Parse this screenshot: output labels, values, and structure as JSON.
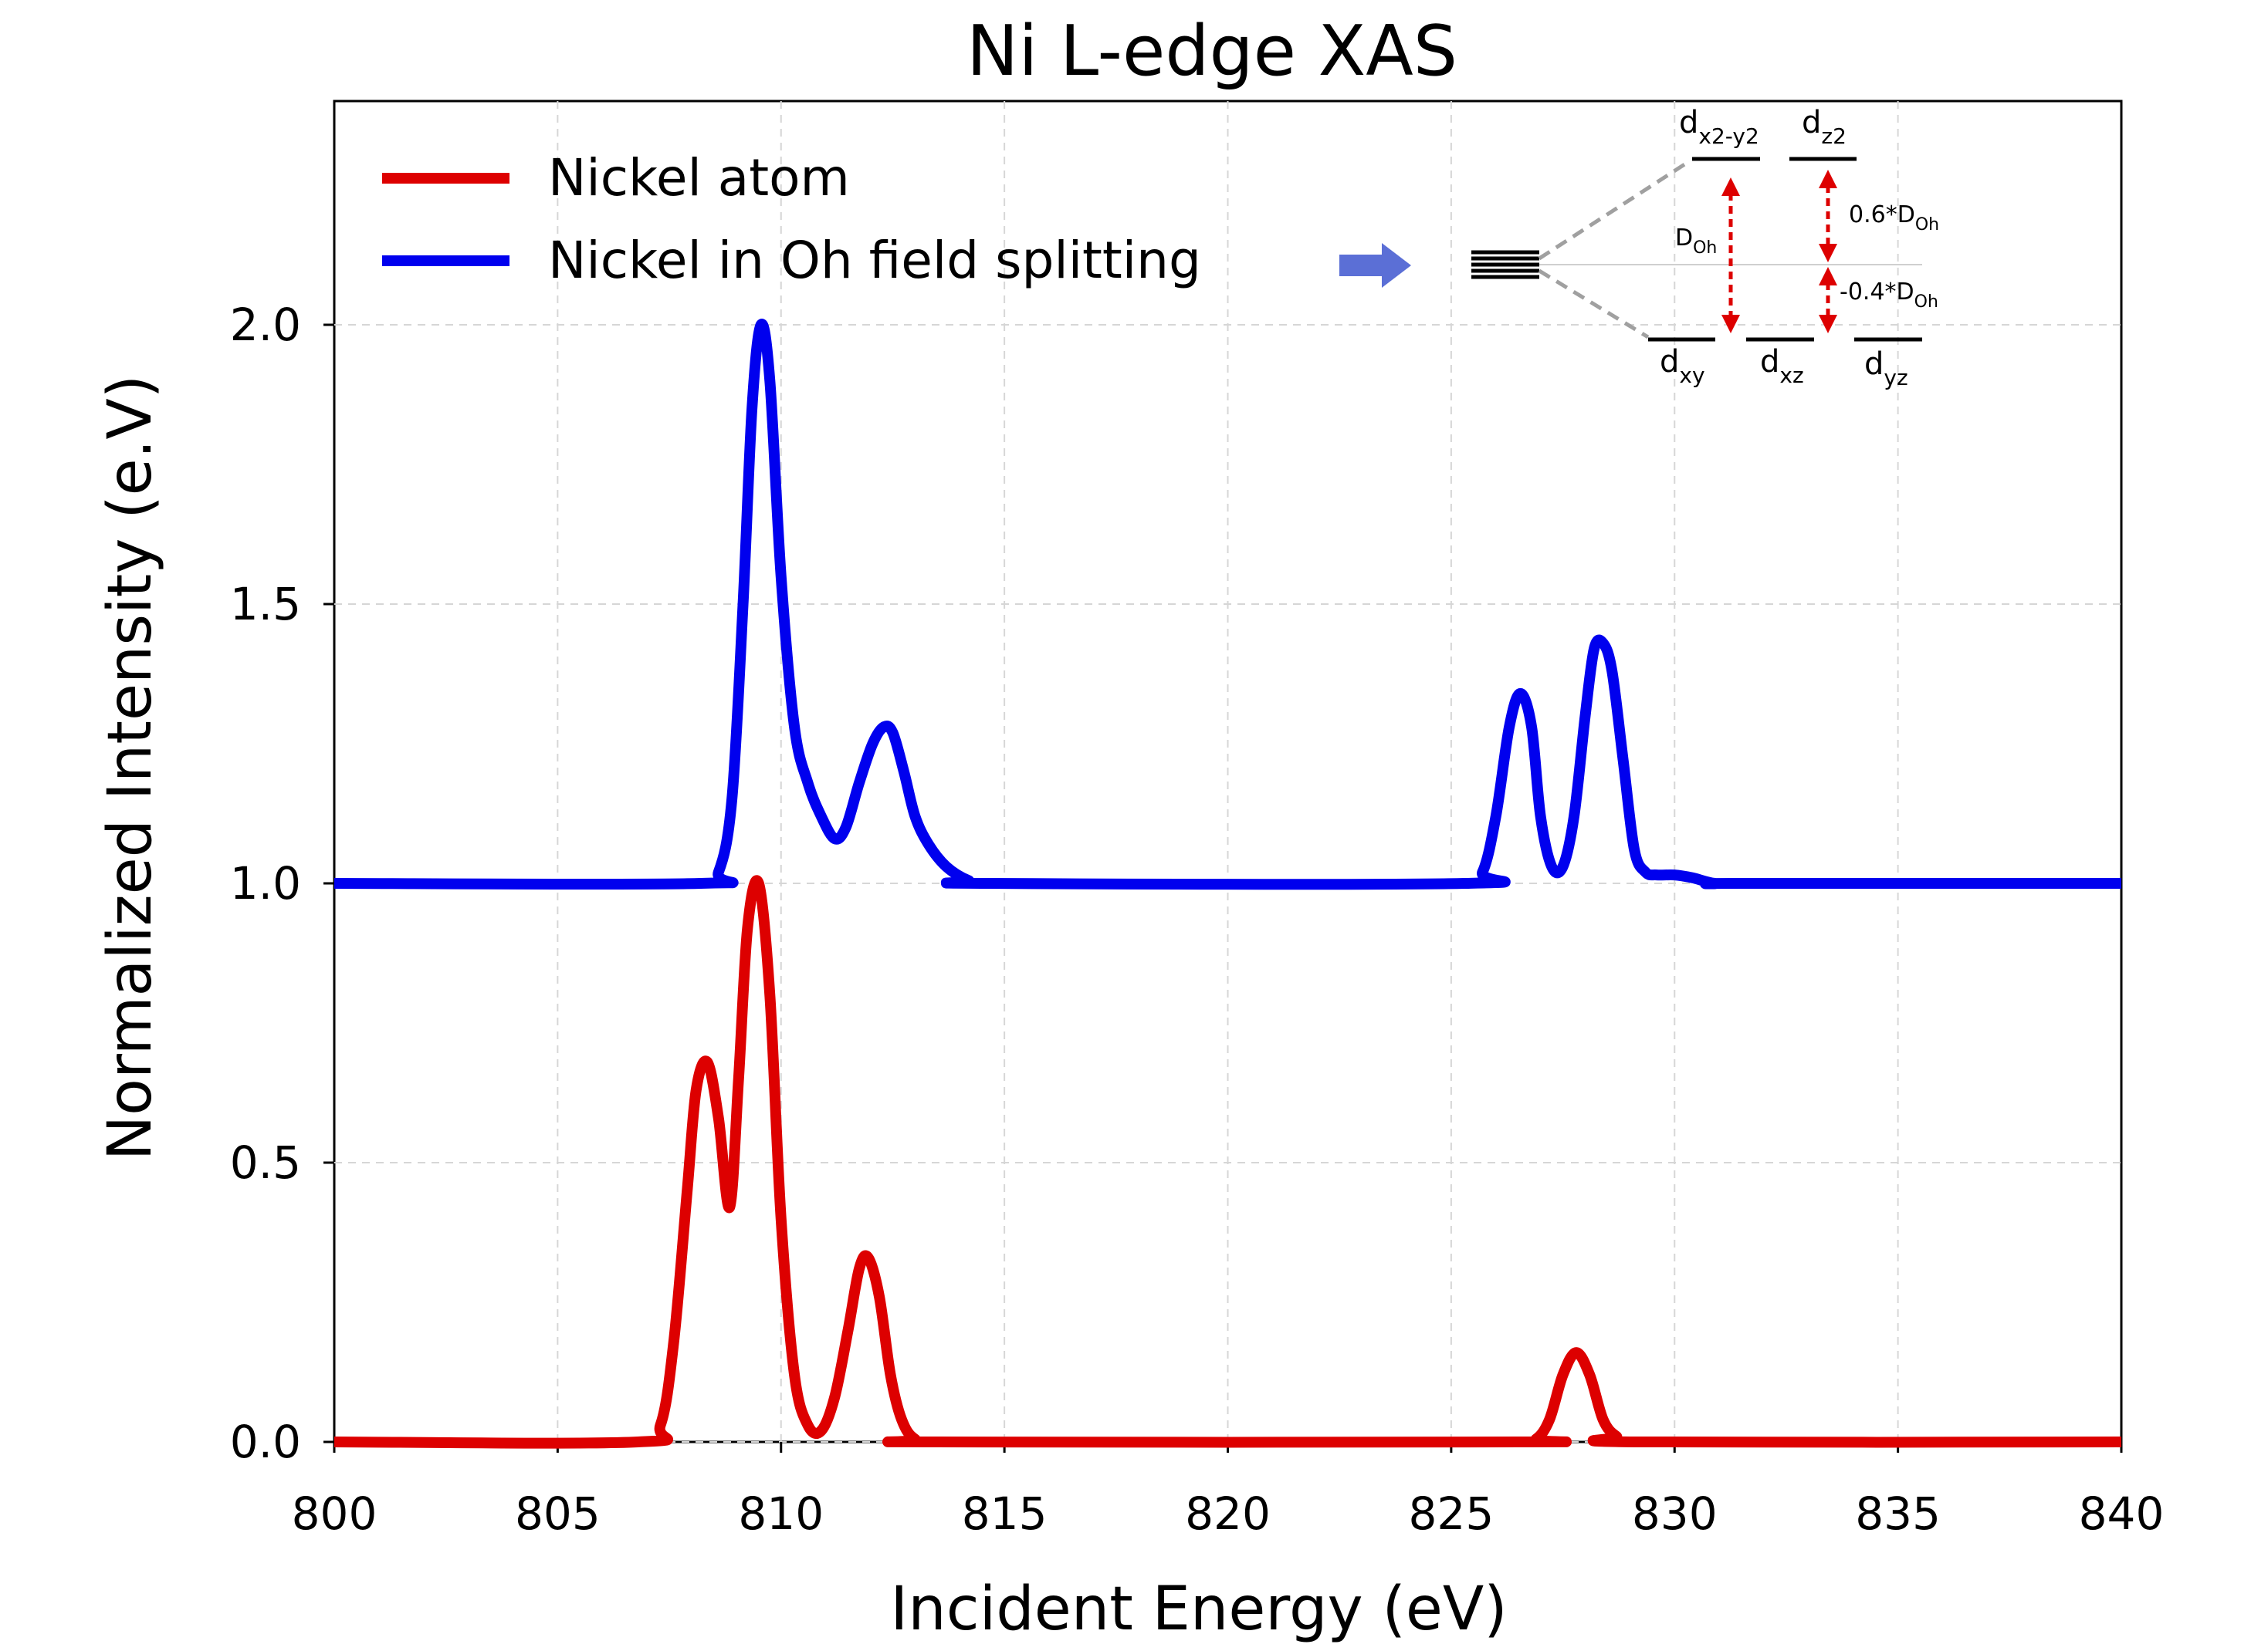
{
  "chart_data": {
    "type": "line",
    "title": "Ni L-edge XAS",
    "xlabel": "Incident Energy (eV)",
    "ylabel": "Normalized Intensity (e.V)",
    "xlim": [
      800,
      840
    ],
    "ylim": [
      0,
      2.4
    ],
    "xticks": [
      "800",
      "805",
      "810",
      "815",
      "820",
      "825",
      "830",
      "835",
      "840"
    ],
    "xtick_values": [
      800,
      805,
      810,
      815,
      820,
      825,
      830,
      835,
      840
    ],
    "yticks": [
      "0.0",
      "0.5",
      "1.0",
      "1.5",
      "2.0"
    ],
    "ytick_values": [
      0.0,
      0.5,
      1.0,
      1.5,
      2.0
    ],
    "grid": true,
    "legend_position": "top-left",
    "series": [
      {
        "name": "Nickel atom",
        "color": "#dd0000",
        "x": [
          800,
          806.8,
          807.3,
          807.6,
          807.9,
          808.1,
          808.35,
          808.6,
          808.85,
          809.05,
          809.25,
          809.5,
          809.75,
          810.0,
          810.3,
          810.6,
          810.9,
          811.2,
          811.5,
          811.75,
          811.95,
          812.2,
          812.45,
          812.7,
          813.0,
          813.5,
          826.5,
          826.9,
          827.2,
          827.5,
          827.8,
          828.1,
          828.4,
          828.7,
          829.1,
          840
        ],
        "y": [
          0,
          0,
          0.03,
          0.18,
          0.45,
          0.63,
          0.68,
          0.58,
          0.42,
          0.65,
          0.92,
          1.0,
          0.8,
          0.4,
          0.12,
          0.03,
          0.02,
          0.08,
          0.2,
          0.31,
          0.33,
          0.26,
          0.12,
          0.04,
          0.005,
          0,
          0,
          0.005,
          0.04,
          0.12,
          0.16,
          0.12,
          0.04,
          0.01,
          0,
          0
        ]
      },
      {
        "name": "Nickel in Oh field splitting",
        "color": "#0000ee",
        "x": [
          800,
          808.2,
          808.6,
          808.9,
          809.15,
          809.35,
          809.55,
          809.75,
          810.0,
          810.3,
          810.6,
          810.9,
          811.2,
          811.45,
          811.75,
          812.05,
          812.3,
          812.5,
          812.75,
          813.0,
          813.3,
          813.7,
          814.2,
          814.6,
          825.3,
          825.7,
          826.0,
          826.3,
          826.55,
          826.8,
          827.0,
          827.25,
          827.5,
          827.75,
          828.0,
          828.2,
          828.4,
          828.6,
          828.85,
          829.1,
          829.35,
          829.6,
          830.0,
          830.4,
          830.9,
          831.5,
          840
        ],
        "y": [
          1.0,
          1.0,
          1.02,
          1.15,
          1.5,
          1.85,
          2.0,
          1.9,
          1.55,
          1.28,
          1.18,
          1.12,
          1.08,
          1.1,
          1.18,
          1.25,
          1.28,
          1.27,
          1.2,
          1.12,
          1.07,
          1.03,
          1.005,
          1.0,
          1.0,
          1.02,
          1.12,
          1.28,
          1.34,
          1.28,
          1.12,
          1.03,
          1.03,
          1.12,
          1.3,
          1.42,
          1.43,
          1.38,
          1.22,
          1.06,
          1.02,
          1.015,
          1.015,
          1.01,
          1.0,
          1.0,
          1.0
        ]
      }
    ]
  },
  "inset": {
    "levels_top": [
      "d",
      "d"
    ],
    "levels_top_sub": [
      "x2-y2",
      "z2"
    ],
    "levels_bottom": [
      "d",
      "d",
      "d"
    ],
    "levels_bottom_sub": [
      "xy",
      "xz",
      "yz"
    ],
    "gap_label": "D",
    "gap_label_sub": "Oh",
    "upper_label": "0.6*D",
    "upper_label_sub": "Oh",
    "lower_label": "-0.4*D",
    "lower_label_sub": "Oh",
    "arrow_color": "#dd0000",
    "pointer_color": "#5b6fd6"
  }
}
